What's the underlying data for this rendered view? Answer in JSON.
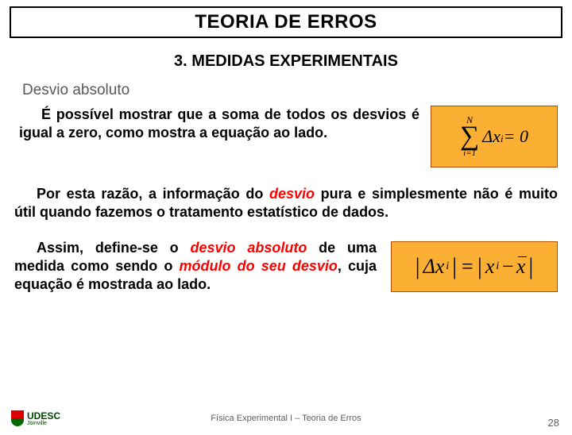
{
  "title": "TEORIA DE ERROS",
  "subtitle": "3. MEDIDAS EXPERIMENTAIS",
  "section_label": "Desvio absoluto",
  "para1": "É possível mostrar que a soma de todos os desvios é igual a zero, como mostra a equação ao lado.",
  "para2_pre": "Por esta razão, a informação do ",
  "para2_em": "desvio",
  "para2_post": " pura e simplesmente não é muito útil quando fazemos o tratamento estatístico de dados.",
  "para3_a": "Assim, define-se o ",
  "para3_b": "desvio absoluto",
  "para3_c": " de uma medida como sendo o ",
  "para3_d": "módulo do seu desvio",
  "para3_e": ", cuja equação é mostrada ao lado.",
  "eq1": {
    "upper": "N",
    "lower": "i=1",
    "delta": "Δx",
    "sub": "i",
    "rhs": " = 0"
  },
  "eq2": {
    "lhs_delta": "Δx",
    "lhs_sub": "i",
    "eq": " = ",
    "rhs_x": "x",
    "rhs_sub": "i",
    "minus": " − ",
    "rhs_xbar": "x"
  },
  "footer": {
    "logo_text": "UDESC",
    "logo_sub": "Joinville",
    "center": "Física Experimental I – Teoria de Erros",
    "page": "28"
  },
  "colors": {
    "eq_bg": "#fbb034",
    "eq_border": "#b54a00",
    "emphasis": "#ff0000",
    "section_gray": "#595959"
  }
}
